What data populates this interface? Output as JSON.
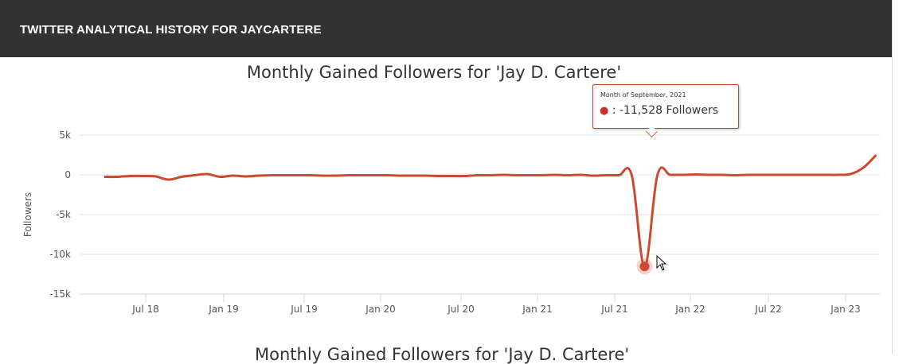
{
  "header": {
    "title": "TWITTER ANALYTICAL HISTORY FOR JAYCARTERE"
  },
  "chart_data": {
    "type": "line",
    "title": "Monthly Gained Followers for 'Jay D. Cartere'",
    "ylabel": "Followers",
    "xlabel": "",
    "ylim": [
      -15000,
      5000
    ],
    "yticks": [
      "5k",
      "0",
      "-5k",
      "-10k",
      "-15k"
    ],
    "ytick_values": [
      5000,
      0,
      -5000,
      -10000,
      -15000
    ],
    "xticks": [
      "Jul 18",
      "Jan 19",
      "Jul 19",
      "Jan 20",
      "Jul 20",
      "Jan 21",
      "Jul 21",
      "Jan 22",
      "Jul 22",
      "Jan 23"
    ],
    "start_month": "2018-03",
    "series": [
      {
        "color": "#cc4a2e",
        "values": [
          -250,
          -250,
          -150,
          -150,
          -200,
          -600,
          -250,
          -50,
          100,
          -250,
          -100,
          -200,
          -100,
          -50,
          -50,
          -50,
          -50,
          -100,
          -100,
          -50,
          -50,
          -50,
          -50,
          -100,
          -100,
          -100,
          -150,
          -150,
          -150,
          -50,
          -50,
          0,
          -50,
          -50,
          -50,
          0,
          -50,
          0,
          -100,
          -50,
          -50,
          -50,
          -11528,
          0,
          0,
          0,
          50,
          0,
          0,
          -50,
          0,
          0,
          0,
          0,
          0,
          0,
          0,
          0,
          100,
          900,
          2500
        ]
      }
    ],
    "grid": true,
    "legend": "none"
  },
  "tooltip": {
    "header": "Month of September, 2021",
    "value": "-11,528 Followers",
    "separator": ":"
  },
  "next_chart": {
    "title": "Monthly Gained Followers for 'Jay D. Cartere'"
  }
}
